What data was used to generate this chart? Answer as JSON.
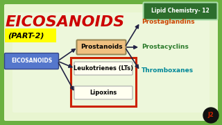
{
  "bg_color": "#6ab040",
  "bg_inner_color": "#d4eaaa",
  "title": "EICOSANOIDS",
  "title_color": "#cc0000",
  "subtitle": "(PART-2)",
  "subtitle_bg": "#ffff00",
  "header_box_text": "Lipid Chemistry- 12",
  "header_box_bg": "#2d6e2d",
  "header_box_text_color": "#ffffff",
  "eicosanoids_box_text": "EICOSANOIDS",
  "eicosanoids_box_bg": "#5577cc",
  "eicosanoids_box_text_color": "#ffffff",
  "prostanoids_box_text": "Prostanoids",
  "prostanoids_box_bg": "#f0c080",
  "leukotrienes_box_text": "Leukotrienes (LTs)",
  "leukotrienes_box_bg": "#fffff0",
  "lipoxins_box_text": "Lipoxins",
  "lipoxins_box_bg": "#fffff0",
  "red_rect_color": "#cc2200",
  "prostaglandins_text": "Prostaglandins",
  "prostaglandins_color": "#cc4400",
  "prostacyclins_text": "Prostacyclins",
  "prostacyclins_color": "#2a7a2a",
  "thromboxanes_text": "Thromboxanes",
  "thromboxanes_color": "#008899",
  "arrow_color": "#222244",
  "logo_color": "#cc2200",
  "logo_bg": "#222222"
}
